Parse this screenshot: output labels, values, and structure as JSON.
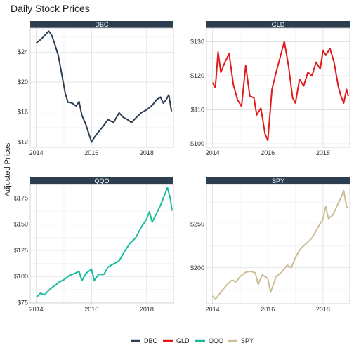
{
  "chart_data": {
    "type": "line",
    "title": "Daily Stock Prices",
    "ylabel": "Adjusted Prices",
    "xlabel": "",
    "legend_position": "bottom",
    "grid": true,
    "facets": [
      {
        "name": "DBC",
        "color": "#2C3E50",
        "xlim": [
          2013.78,
          2018.97
        ],
        "ylim": [
          11.3,
          27.2
        ],
        "y_ticks": [
          12,
          16,
          20,
          24
        ],
        "y_tick_labels": [
          "$12",
          "$16",
          "$20",
          "$24"
        ],
        "x_ticks": [
          2014,
          2016,
          2018
        ],
        "x_tick_labels": [
          "2014",
          "2016",
          "2018"
        ],
        "series": {
          "x": [
            2014.0,
            2014.2,
            2014.45,
            2014.55,
            2014.65,
            2014.8,
            2014.95,
            2015.05,
            2015.15,
            2015.3,
            2015.45,
            2015.55,
            2015.65,
            2015.8,
            2016.0,
            2016.1,
            2016.2,
            2016.4,
            2016.6,
            2016.8,
            2017.0,
            2017.15,
            2017.3,
            2017.45,
            2017.6,
            2017.8,
            2018.0,
            2018.2,
            2018.35,
            2018.5,
            2018.6,
            2018.7,
            2018.8,
            2018.9
          ],
          "y": [
            25.2,
            25.8,
            26.8,
            26.3,
            25.3,
            23.5,
            20.5,
            18.5,
            17.3,
            17.2,
            16.8,
            17.4,
            15.6,
            14.3,
            12.0,
            12.6,
            13.1,
            14.0,
            15.0,
            14.6,
            15.9,
            15.3,
            15.0,
            14.6,
            15.2,
            15.9,
            16.3,
            16.9,
            17.6,
            18.0,
            17.2,
            17.6,
            18.3,
            16.1
          ]
        }
      },
      {
        "name": "GLD",
        "color": "#E31A1C",
        "xlim": [
          2013.78,
          2018.97
        ],
        "ylim": [
          99.0,
          134.0
        ],
        "y_ticks": [
          100,
          110,
          120,
          130
        ],
        "y_tick_labels": [
          "$100",
          "$110",
          "$120",
          "$130"
        ],
        "x_ticks": [
          2014,
          2016,
          2018
        ],
        "x_tick_labels": [
          "2014",
          "2016",
          "2018"
        ],
        "series": {
          "x": [
            2014.0,
            2014.1,
            2014.2,
            2014.3,
            2014.45,
            2014.6,
            2014.75,
            2014.9,
            2015.05,
            2015.2,
            2015.35,
            2015.5,
            2015.6,
            2015.75,
            2015.9,
            2016.0,
            2016.15,
            2016.3,
            2016.5,
            2016.6,
            2016.75,
            2016.9,
            2017.0,
            2017.15,
            2017.3,
            2017.45,
            2017.6,
            2017.75,
            2017.9,
            2018.0,
            2018.1,
            2018.25,
            2018.4,
            2018.55,
            2018.65,
            2018.75,
            2018.85,
            2018.92
          ],
          "y": [
            118.0,
            116.5,
            127.0,
            121.0,
            124.0,
            126.5,
            117.5,
            113.0,
            111.0,
            123.0,
            114.0,
            113.5,
            108.5,
            110.5,
            103.0,
            101.0,
            116.0,
            121.0,
            127.0,
            130.0,
            123.0,
            113.5,
            112.0,
            119.0,
            117.0,
            121.0,
            120.0,
            124.0,
            122.0,
            127.5,
            126.0,
            128.0,
            124.0,
            117.0,
            114.0,
            112.0,
            116.0,
            114.0
          ]
        }
      },
      {
        "name": "QQQ",
        "color": "#18BC9C",
        "xlim": [
          2013.78,
          2018.97
        ],
        "ylim": [
          74.0,
          188.0
        ],
        "y_ticks": [
          75,
          100,
          125,
          150,
          175
        ],
        "y_tick_labels": [
          "$75",
          "$100",
          "$125",
          "$150",
          "$175"
        ],
        "x_ticks": [
          2014,
          2016,
          2018
        ],
        "x_tick_labels": [
          "2014",
          "2016",
          "2018"
        ],
        "series": {
          "x": [
            2014.0,
            2014.15,
            2014.3,
            2014.5,
            2014.7,
            2014.85,
            2015.0,
            2015.2,
            2015.4,
            2015.55,
            2015.65,
            2015.8,
            2016.0,
            2016.1,
            2016.25,
            2016.45,
            2016.6,
            2016.8,
            2017.0,
            2017.2,
            2017.4,
            2017.6,
            2017.8,
            2018.0,
            2018.1,
            2018.2,
            2018.35,
            2018.5,
            2018.65,
            2018.75,
            2018.85,
            2018.92
          ],
          "y": [
            80.0,
            84.0,
            82.5,
            88.0,
            92.0,
            95.0,
            97.0,
            101.0,
            103.0,
            105.0,
            96.0,
            103.0,
            107.0,
            96.0,
            102.0,
            102.0,
            109.0,
            112.0,
            115.0,
            124.0,
            132.0,
            137.0,
            147.0,
            155.0,
            162.0,
            152.0,
            160.0,
            168.0,
            178.0,
            185.0,
            175.0,
            163.0
          ]
        }
      },
      {
        "name": "SPY",
        "color": "#CCBE93",
        "xlim": [
          2013.78,
          2018.97
        ],
        "ylim": [
          159.0,
          295.0
        ],
        "y_ticks": [
          200,
          250
        ],
        "y_tick_labels": [
          "$200",
          "$250"
        ],
        "x_ticks": [
          2014,
          2016,
          2018
        ],
        "x_tick_labels": [
          "2014",
          "2016",
          "2018"
        ],
        "series": {
          "x": [
            2014.0,
            2014.1,
            2014.3,
            2014.5,
            2014.7,
            2014.85,
            2015.0,
            2015.2,
            2015.4,
            2015.55,
            2015.65,
            2015.8,
            2016.0,
            2016.1,
            2016.3,
            2016.5,
            2016.7,
            2016.85,
            2017.0,
            2017.2,
            2017.4,
            2017.6,
            2017.8,
            2018.0,
            2018.1,
            2018.2,
            2018.35,
            2018.5,
            2018.65,
            2018.75,
            2018.85,
            2018.92
          ],
          "y": [
            168.0,
            164.0,
            172.0,
            180.0,
            186.0,
            184.0,
            190.0,
            195.0,
            196.0,
            194.0,
            181.0,
            192.0,
            188.0,
            172.0,
            190.0,
            195.0,
            203.0,
            200.0,
            212.0,
            222.0,
            228.0,
            234.0,
            245.0,
            256.0,
            270.0,
            256.0,
            260.0,
            270.0,
            280.0,
            288.0,
            270.0,
            268.0
          ]
        }
      }
    ]
  }
}
